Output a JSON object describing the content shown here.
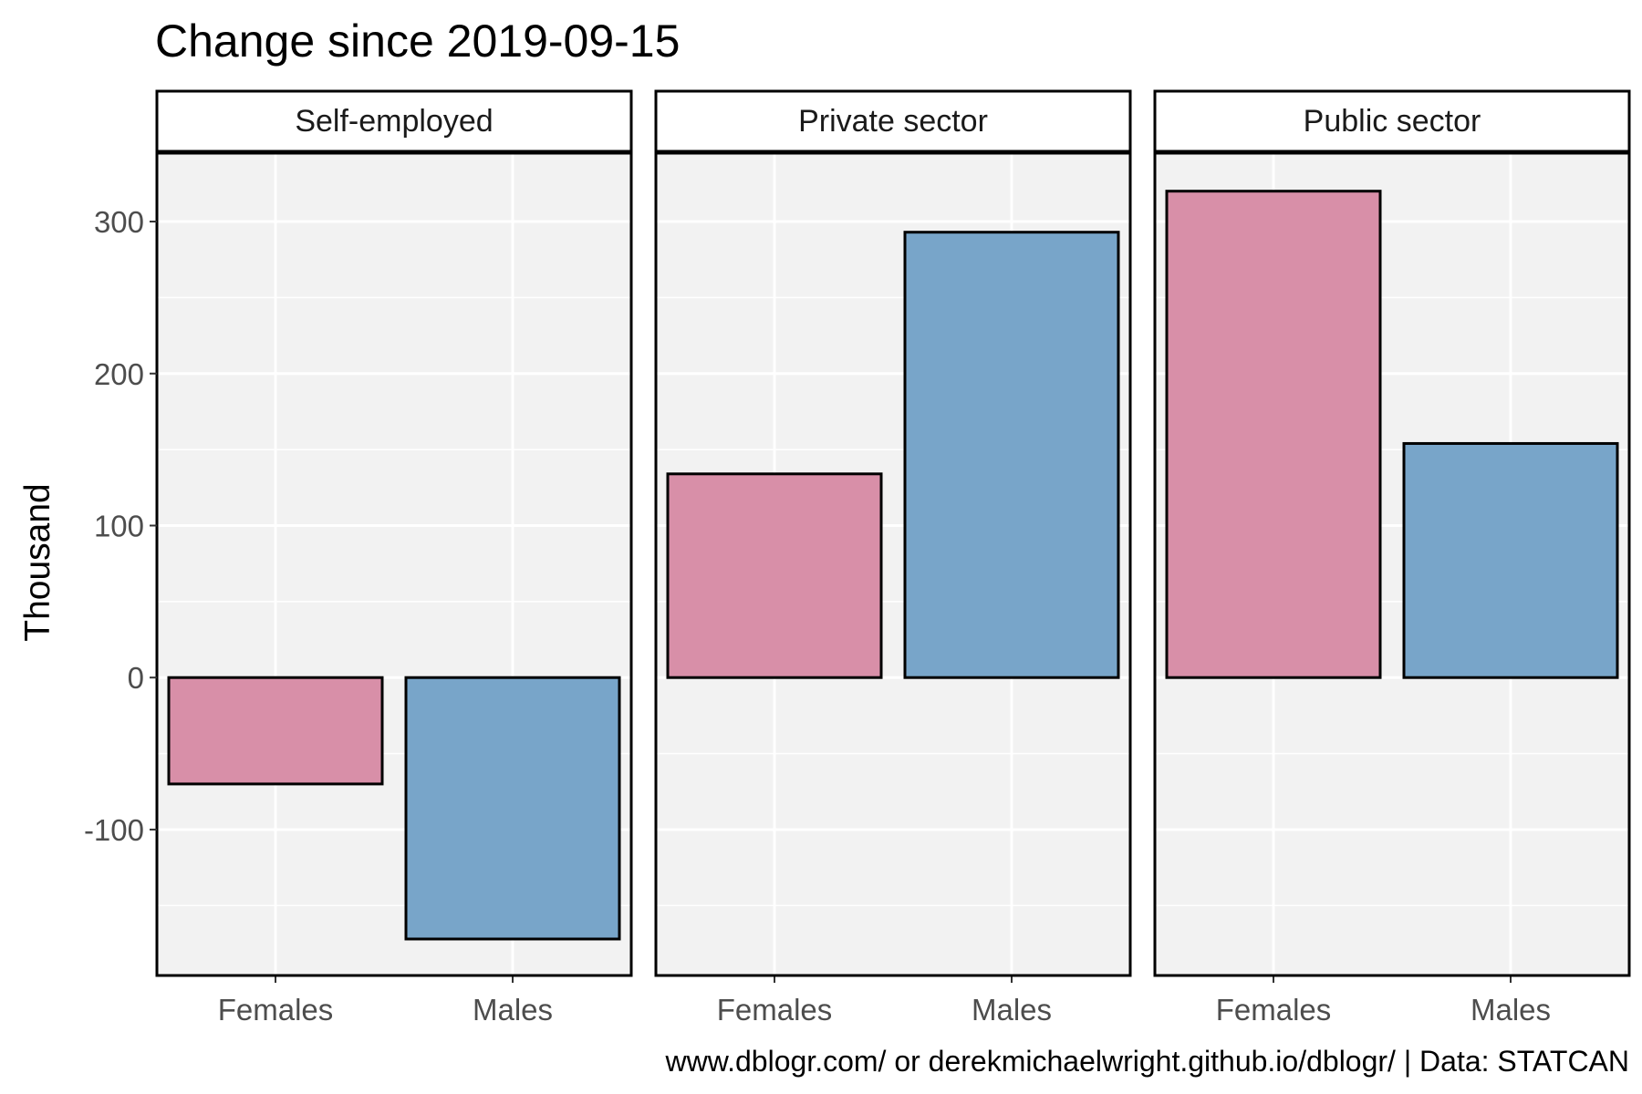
{
  "chart_data": {
    "type": "bar",
    "title": "Change since 2019-09-15",
    "ylabel": "Thousand",
    "caption": "www.dblogr.com/ or derekmichaelwright.github.io/dblogr/ | Data: STATCAN",
    "categories": [
      "Females",
      "Males"
    ],
    "ylim": [
      -196,
      345
    ],
    "y_ticks": [
      -100,
      0,
      100,
      200,
      300
    ],
    "y_tick_labels": [
      "-100",
      "0",
      "100",
      "200",
      "300"
    ],
    "grid": true,
    "legend": "none",
    "colors": {
      "Females": "#d88fa8",
      "Males": "#78a5c9",
      "panel_background": "#f2f2f2",
      "grid": "#ffffff",
      "border": "#000000"
    },
    "panels": [
      {
        "name": "Self-employed",
        "values": [
          -70,
          -172
        ]
      },
      {
        "name": "Private sector",
        "values": [
          134,
          293
        ]
      },
      {
        "name": "Public sector",
        "values": [
          320,
          154
        ]
      }
    ]
  }
}
